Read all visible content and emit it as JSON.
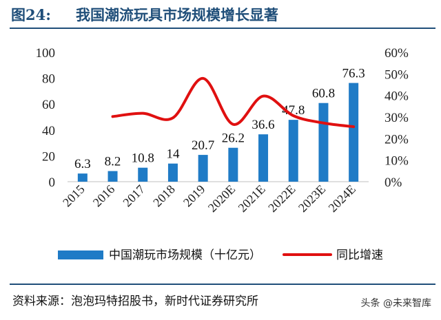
{
  "header": {
    "figure_no": "图24:",
    "title": "我国潮流玩具市场规模增长显著"
  },
  "footer": {
    "source": "资料来源：泡泡玛特招股书，新时代证券研究所",
    "watermark": "头条 @未来智库"
  },
  "colors": {
    "bar": "#1f7bc6",
    "line": "#e01010",
    "title": "#1f4e79"
  },
  "chart_data": {
    "type": "bar",
    "categories": [
      "2015",
      "2016",
      "2017",
      "2018",
      "2019",
      "2020E",
      "2021E",
      "2022E",
      "2023E",
      "2024E"
    ],
    "series": [
      {
        "name": "中国潮玩市场规模（十亿元）",
        "type": "bar",
        "axis": "left",
        "values": [
          6.3,
          8.2,
          10.8,
          14,
          20.7,
          26.2,
          36.6,
          47.8,
          60.8,
          76.3
        ],
        "labels": [
          "6.3",
          "8.2",
          "10.8",
          "14",
          "20.7",
          "26.2",
          "36.6",
          "47.8",
          "60.8",
          "76.3"
        ]
      },
      {
        "name": "同比增速",
        "type": "line",
        "axis": "right",
        "values": [
          null,
          30.2,
          31.7,
          29.6,
          47.9,
          26.6,
          39.7,
          30.6,
          27.2,
          25.5
        ]
      }
    ],
    "yleft": {
      "lim": [
        0,
        100
      ],
      "ticks": [
        "0",
        "20",
        "40",
        "60",
        "80",
        "100"
      ]
    },
    "yright": {
      "lim": [
        0,
        60
      ],
      "ticks": [
        "0%",
        "10%",
        "20%",
        "30%",
        "40%",
        "50%",
        "60%"
      ]
    },
    "legend": "bottom",
    "grid": false
  }
}
